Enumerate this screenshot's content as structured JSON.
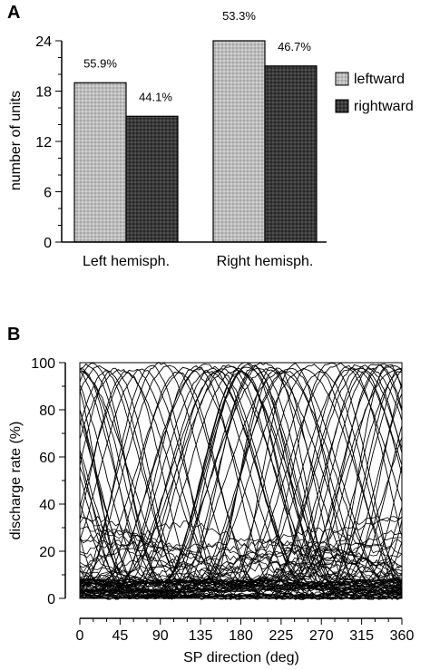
{
  "chart_data": [
    {
      "type": "bar",
      "panel_label": "A",
      "categories": [
        "Left hemisph.",
        "Right hemisph."
      ],
      "series": [
        {
          "name": "leftward",
          "values": [
            19,
            24
          ],
          "labels": [
            "55.9%",
            "53.3%"
          ],
          "color": "#bdbdbd"
        },
        {
          "name": "rightward",
          "values": [
            15,
            21
          ],
          "labels": [
            "44.1%",
            "46.7%"
          ],
          "color": "#3a3a3a"
        }
      ],
      "ylabel": "number of units",
      "ylim": [
        0,
        24
      ],
      "yticks": [
        "0",
        "6",
        "12",
        "18",
        "24"
      ],
      "legend_position": "right",
      "grid": false
    },
    {
      "type": "line",
      "panel_label": "B",
      "description_series": "tuning curves of many units",
      "xlabel": "SP direction (deg)",
      "ylabel": "discharge rate (%)",
      "xlim": [
        0,
        360
      ],
      "ylim": [
        0,
        100
      ],
      "xticks": [
        "0",
        "45",
        "90",
        "135",
        "180",
        "225",
        "270",
        "315",
        "360"
      ],
      "yticks": [
        "0",
        "20",
        "40",
        "60",
        "80",
        "100"
      ],
      "curve_peaks": [
        0,
        8,
        15,
        22,
        30,
        38,
        45,
        52,
        60,
        70,
        80,
        90,
        100,
        110,
        120,
        130,
        135,
        140,
        145,
        150,
        155,
        160,
        165,
        170,
        175,
        180,
        182,
        185,
        188,
        190,
        195,
        200,
        205,
        210,
        215,
        220,
        225,
        230,
        235,
        240,
        250,
        260,
        270,
        280,
        290,
        300,
        305,
        310,
        315,
        320,
        325,
        330,
        335,
        340,
        345,
        350,
        355,
        360
      ],
      "grid": false
    }
  ]
}
